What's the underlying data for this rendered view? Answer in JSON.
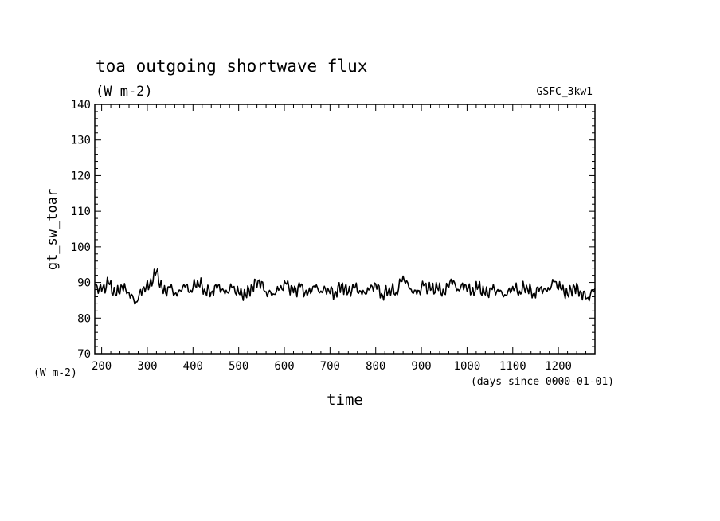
{
  "chart_data": {
    "type": "line",
    "title": "toa outgoing shortwave flux",
    "subtitle": "(W m-2)",
    "source_label": "GSFC_3kw1",
    "ylabel": "gt_sw_toar",
    "yunit": "(W m-2)",
    "xlabel": "time",
    "xunit": "(days since 0000-01-01)",
    "xlim": [
      185,
      1280
    ],
    "ylim": [
      70,
      140
    ],
    "xticks": [
      200,
      300,
      400,
      500,
      600,
      700,
      800,
      900,
      1000,
      1100,
      1200
    ],
    "yticks": [
      70,
      80,
      90,
      100,
      110,
      120,
      130,
      140
    ],
    "grid": false,
    "series": [
      {
        "color": "#000000",
        "x": [
          185,
          200,
          215,
          230,
          245,
          260,
          275,
          290,
          305,
          320,
          335,
          350,
          365,
          380,
          395,
          410,
          425,
          440,
          455,
          470,
          485,
          500,
          515,
          530,
          545,
          560,
          575,
          590,
          605,
          620,
          635,
          650,
          665,
          680,
          695,
          710,
          725,
          740,
          755,
          770,
          785,
          800,
          815,
          830,
          845,
          860,
          875,
          890,
          905,
          920,
          935,
          950,
          965,
          980,
          995,
          1010,
          1025,
          1040,
          1055,
          1070,
          1085,
          1100,
          1115,
          1130,
          1145,
          1160,
          1175,
          1190,
          1205,
          1220,
          1235,
          1250,
          1265,
          1280
        ],
        "values": [
          89.2,
          87.5,
          89.8,
          86.4,
          88.9,
          87.1,
          84.5,
          88.3,
          89.1,
          93.0,
          86.9,
          88.4,
          86.2,
          89.4,
          87.8,
          90.6,
          88.1,
          87.3,
          89.2,
          86.8,
          88.6,
          87.0,
          86.5,
          88.9,
          90.7,
          87.4,
          86.8,
          88.2,
          89.5,
          87.1,
          88.8,
          86.3,
          89.0,
          87.6,
          88.4,
          86.9,
          89.3,
          87.2,
          88.7,
          86.6,
          87.9,
          89.6,
          86.4,
          88.5,
          87.3,
          91.8,
          88.2,
          86.7,
          89.1,
          87.8,
          88.4,
          86.9,
          90.9,
          88.1,
          89.4,
          87.2,
          88.8,
          86.5,
          88.0,
          87.3,
          86.4,
          88.9,
          87.6,
          89.2,
          86.8,
          88.5,
          87.4,
          90.1,
          88.3,
          86.6,
          88.9,
          87.2,
          85.8,
          88.4
        ]
      }
    ]
  }
}
